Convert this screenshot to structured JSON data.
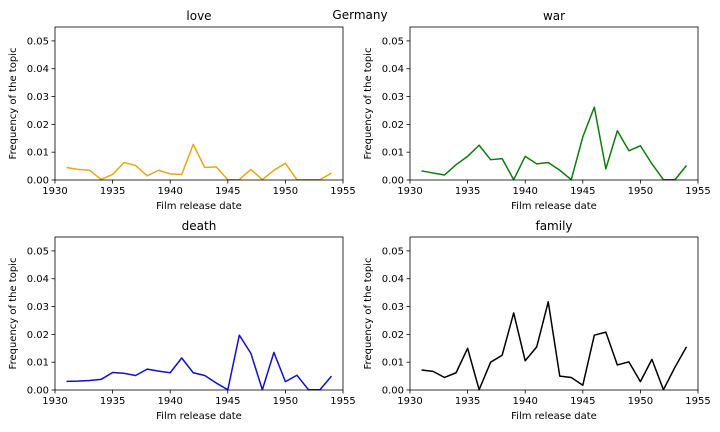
{
  "chart_data": {
    "type": "line",
    "suptitle": "Germany",
    "xlim": [
      1930,
      1955
    ],
    "ylim": [
      0,
      0.055
    ],
    "xticks": [
      "1930",
      "1935",
      "1940",
      "1945",
      "1950",
      "1955"
    ],
    "yticks": [
      "0.00",
      "0.01",
      "0.02",
      "0.03",
      "0.04",
      "0.05"
    ],
    "xlabel": "Film release date",
    "ylabel": "Frequency of the topic",
    "panels": [
      {
        "title": "love",
        "color": "#e6a817",
        "x": [
          1931,
          1932,
          1933,
          1934,
          1935,
          1936,
          1937,
          1938,
          1939,
          1940,
          1941,
          1942,
          1943,
          1944,
          1945,
          1946,
          1947,
          1948,
          1949,
          1950,
          1951,
          1952,
          1953,
          1954
        ],
        "values": [
          0.0045,
          0.0038,
          0.0035,
          0.0002,
          0.002,
          0.0063,
          0.0052,
          0.0015,
          0.0035,
          0.0022,
          0.002,
          0.0128,
          0.0045,
          0.0047,
          0.0001,
          0.0001,
          0.0038,
          0.0001,
          0.0035,
          0.006,
          0.0001,
          0.0001,
          0.0001,
          0.0025
        ]
      },
      {
        "title": "war",
        "color": "#107a10",
        "x": [
          1931,
          1932,
          1933,
          1934,
          1935,
          1936,
          1937,
          1938,
          1939,
          1940,
          1941,
          1942,
          1943,
          1944,
          1945,
          1946,
          1947,
          1948,
          1949,
          1950,
          1951,
          1952,
          1953,
          1954
        ],
        "values": [
          0.0033,
          0.0025,
          0.0018,
          0.0055,
          0.0085,
          0.0125,
          0.0073,
          0.0077,
          0.0001,
          0.0085,
          0.0058,
          0.0063,
          0.0035,
          0.0001,
          0.0155,
          0.0262,
          0.004,
          0.0177,
          0.0105,
          0.0123,
          0.0058,
          0.0001,
          0.0001,
          0.0052
        ]
      },
      {
        "title": "death",
        "color": "#1010c8",
        "x": [
          1931,
          1932,
          1933,
          1934,
          1935,
          1936,
          1937,
          1938,
          1939,
          1940,
          1941,
          1942,
          1943,
          1944,
          1945,
          1946,
          1947,
          1948,
          1949,
          1950,
          1951,
          1952,
          1953,
          1954
        ],
        "values": [
          0.0031,
          0.0032,
          0.0034,
          0.0038,
          0.0063,
          0.006,
          0.0052,
          0.0075,
          0.0068,
          0.0062,
          0.0115,
          0.0062,
          0.0052,
          0.0025,
          0.0001,
          0.0197,
          0.0132,
          0.0001,
          0.0135,
          0.003,
          0.0053,
          0.0001,
          0.0001,
          0.005
        ]
      },
      {
        "title": "family",
        "color": "#000000",
        "x": [
          1931,
          1932,
          1933,
          1934,
          1935,
          1936,
          1937,
          1938,
          1939,
          1940,
          1941,
          1942,
          1943,
          1944,
          1945,
          1946,
          1947,
          1948,
          1949,
          1950,
          1951,
          1952,
          1953,
          1954
        ],
        "values": [
          0.0072,
          0.0067,
          0.0045,
          0.0062,
          0.015,
          0.0001,
          0.01,
          0.0125,
          0.0277,
          0.0105,
          0.0155,
          0.0317,
          0.005,
          0.0045,
          0.0017,
          0.0197,
          0.0208,
          0.009,
          0.0101,
          0.003,
          0.011,
          0.0001,
          0.0082,
          0.0155
        ]
      }
    ]
  }
}
